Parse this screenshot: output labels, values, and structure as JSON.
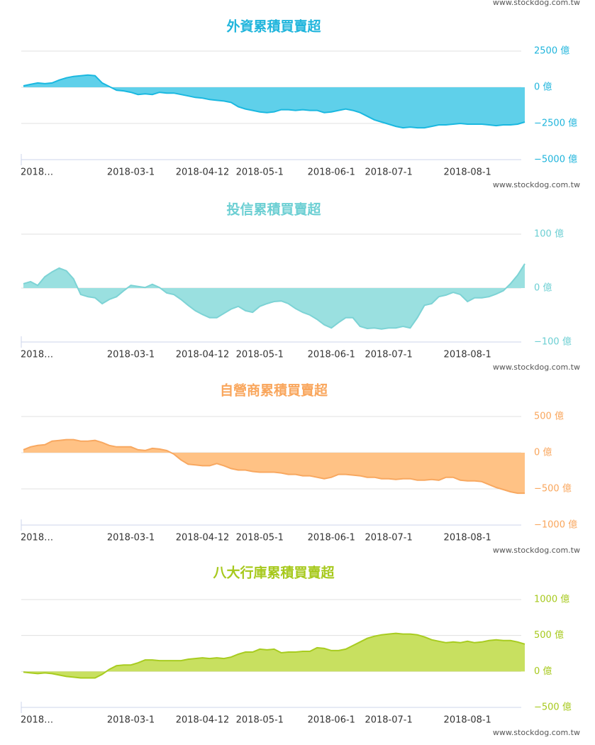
{
  "header_watermark": "www.stockdog.com.tw",
  "chart_data": [
    {
      "type": "area",
      "title": "外資累積買賣超",
      "title_color": "#20b5dc",
      "color": "#1ab8e0",
      "fill": "#5fd0ea",
      "watermark": "www.stockdog.com.tw",
      "categories": [
        "2018…",
        null,
        null,
        null,
        null,
        null,
        null,
        null,
        null,
        null,
        null,
        null,
        null,
        null,
        null,
        "2018-03-1",
        null,
        null,
        null,
        null,
        null,
        null,
        null,
        null,
        null,
        "2018-04-12",
        null,
        null,
        null,
        null,
        null,
        null,
        null,
        "2018-05-1",
        null,
        null,
        null,
        null,
        null,
        null,
        null,
        null,
        null,
        "2018-06-1",
        null,
        null,
        null,
        null,
        null,
        null,
        null,
        "2018-07-1",
        null,
        null,
        null,
        null,
        null,
        null,
        null,
        null,
        null,
        null,
        "2018-08-1",
        null,
        null,
        null,
        null,
        null,
        null,
        null,
        null
      ],
      "values": [
        100,
        200,
        300,
        250,
        300,
        500,
        650,
        750,
        800,
        850,
        800,
        300,
        50,
        -200,
        -250,
        -350,
        -500,
        -450,
        -500,
        -350,
        -400,
        -400,
        -500,
        -600,
        -700,
        -750,
        -850,
        -900,
        -950,
        -1050,
        -1350,
        -1500,
        -1600,
        -1700,
        -1750,
        -1700,
        -1550,
        -1550,
        -1600,
        -1550,
        -1600,
        -1600,
        -1750,
        -1700,
        -1600,
        -1500,
        -1600,
        -1750,
        -2000,
        -2250,
        -2400,
        -2550,
        -2700,
        -2800,
        -2750,
        -2800,
        -2800,
        -2700,
        -2600,
        -2600,
        -2550,
        -2500,
        -2550,
        -2550,
        -2550,
        -2600,
        -2650,
        -2600,
        -2600,
        -2550,
        -2400
      ],
      "ylim": [
        -5000,
        2500
      ],
      "yticks": [
        {
          "value": 2500,
          "label": "2500 億"
        },
        {
          "value": 0,
          "label": "0 億"
        },
        {
          "value": -2500,
          "label": "−2500 億"
        },
        {
          "value": -5000,
          "label": "−5000 億"
        }
      ],
      "grid": true
    },
    {
      "type": "area",
      "title": "投信累積買賣超",
      "title_color": "#6ccfd3",
      "color": "#7dd3d5",
      "fill": "#9ae0e0",
      "watermark": "www.stockdog.com.tw",
      "categories": [
        "2018…",
        null,
        null,
        null,
        null,
        null,
        null,
        null,
        null,
        null,
        null,
        null,
        null,
        null,
        null,
        "2018-03-1",
        null,
        null,
        null,
        null,
        null,
        null,
        null,
        null,
        null,
        "2018-04-12",
        null,
        null,
        null,
        null,
        null,
        null,
        null,
        "2018-05-1",
        null,
        null,
        null,
        null,
        null,
        null,
        null,
        null,
        null,
        "2018-06-1",
        null,
        null,
        null,
        null,
        null,
        null,
        null,
        "2018-07-1",
        null,
        null,
        null,
        null,
        null,
        null,
        null,
        null,
        null,
        null,
        "2018-08-1",
        null,
        null,
        null,
        null,
        null,
        null,
        null,
        null
      ],
      "values": [
        8,
        12,
        5,
        21,
        30,
        37,
        32,
        17,
        -12,
        -16,
        -18,
        -29,
        -21,
        -16,
        -5,
        5,
        3,
        1,
        7,
        1,
        -9,
        -12,
        -21,
        -32,
        -42,
        -49,
        -55,
        -55,
        -47,
        -39,
        -34,
        -42,
        -45,
        -34,
        -29,
        -25,
        -24,
        -29,
        -38,
        -45,
        -50,
        -58,
        -68,
        -74,
        -64,
        -55,
        -55,
        -71,
        -75,
        -74,
        -76,
        -74,
        -74,
        -71,
        -74,
        -55,
        -32,
        -29,
        -16,
        -13,
        -8,
        -12,
        -25,
        -18,
        -18,
        -16,
        -11,
        -5,
        8,
        24,
        45
      ],
      "ylim": [
        -100,
        100
      ],
      "yticks": [
        {
          "value": 100,
          "label": "100 億"
        },
        {
          "value": 0,
          "label": "0 億"
        },
        {
          "value": -100,
          "label": "−100 億"
        }
      ],
      "grid": true
    },
    {
      "type": "area",
      "title": "自營商累積買賣超",
      "title_color": "#f9a65c",
      "color": "#f8a860",
      "fill": "#ffc285",
      "watermark": "www.stockdog.com.tw",
      "categories": [
        "2018…",
        null,
        null,
        null,
        null,
        null,
        null,
        null,
        null,
        null,
        null,
        null,
        null,
        null,
        null,
        "2018-03-1",
        null,
        null,
        null,
        null,
        null,
        null,
        null,
        null,
        null,
        "2018-04-12",
        null,
        null,
        null,
        null,
        null,
        null,
        null,
        "2018-05-1",
        null,
        null,
        null,
        null,
        null,
        null,
        null,
        null,
        null,
        "2018-06-1",
        null,
        null,
        null,
        null,
        null,
        null,
        null,
        "2018-07-1",
        null,
        null,
        null,
        null,
        null,
        null,
        null,
        null,
        null,
        null,
        "2018-08-1",
        null,
        null,
        null,
        null,
        null,
        null,
        null,
        null
      ],
      "values": [
        40,
        80,
        100,
        110,
        160,
        170,
        180,
        180,
        160,
        160,
        170,
        140,
        100,
        80,
        80,
        80,
        40,
        30,
        60,
        50,
        30,
        -20,
        -100,
        -160,
        -170,
        -180,
        -180,
        -150,
        -180,
        -220,
        -240,
        -240,
        -260,
        -270,
        -270,
        -270,
        -280,
        -300,
        -300,
        -320,
        -320,
        -340,
        -360,
        -340,
        -300,
        -300,
        -310,
        -320,
        -340,
        -340,
        -360,
        -360,
        -370,
        -360,
        -360,
        -380,
        -380,
        -370,
        -380,
        -340,
        -340,
        -380,
        -390,
        -390,
        -400,
        -440,
        -480,
        -510,
        -540,
        -560,
        -560
      ],
      "ylim": [
        -1000,
        500
      ],
      "yticks": [
        {
          "value": 500,
          "label": "500 億"
        },
        {
          "value": 0,
          "label": "0 億"
        },
        {
          "value": -500,
          "label": "−500 億"
        },
        {
          "value": -1000,
          "label": "−1000 億"
        }
      ],
      "grid": true
    },
    {
      "type": "area",
      "title": "八大行庫累積買賣超",
      "title_color": "#a7c91d",
      "color": "#a8cc20",
      "fill": "#c8e060",
      "watermark": "www.stockdog.com.tw",
      "categories": [
        "2018…",
        null,
        null,
        null,
        null,
        null,
        null,
        null,
        null,
        null,
        null,
        null,
        null,
        null,
        null,
        "2018-03-1",
        null,
        null,
        null,
        null,
        null,
        null,
        null,
        null,
        null,
        "2018-04-12",
        null,
        null,
        null,
        null,
        null,
        null,
        null,
        "2018-05-1",
        null,
        null,
        null,
        null,
        null,
        null,
        null,
        null,
        null,
        "2018-06-1",
        null,
        null,
        null,
        null,
        null,
        null,
        null,
        "2018-07-1",
        null,
        null,
        null,
        null,
        null,
        null,
        null,
        null,
        null,
        null,
        "2018-08-1",
        null,
        null,
        null,
        null,
        null,
        null,
        null,
        null
      ],
      "values": [
        -10,
        -20,
        -30,
        -20,
        -30,
        -50,
        -70,
        -80,
        -90,
        -90,
        -90,
        -40,
        30,
        80,
        90,
        90,
        120,
        160,
        160,
        150,
        150,
        150,
        150,
        170,
        180,
        190,
        180,
        190,
        180,
        200,
        240,
        270,
        270,
        310,
        300,
        310,
        260,
        270,
        270,
        280,
        280,
        330,
        320,
        290,
        290,
        310,
        360,
        410,
        460,
        490,
        510,
        520,
        530,
        520,
        520,
        510,
        480,
        440,
        420,
        400,
        410,
        400,
        420,
        400,
        410,
        430,
        440,
        430,
        430,
        410,
        380
      ],
      "ylim": [
        -500,
        1000
      ],
      "yticks": [
        {
          "value": 1000,
          "label": "1000 億"
        },
        {
          "value": 500,
          "label": "500 億"
        },
        {
          "value": 0,
          "label": "0 億"
        },
        {
          "value": -500,
          "label": "−500 億"
        }
      ],
      "grid": true
    }
  ]
}
